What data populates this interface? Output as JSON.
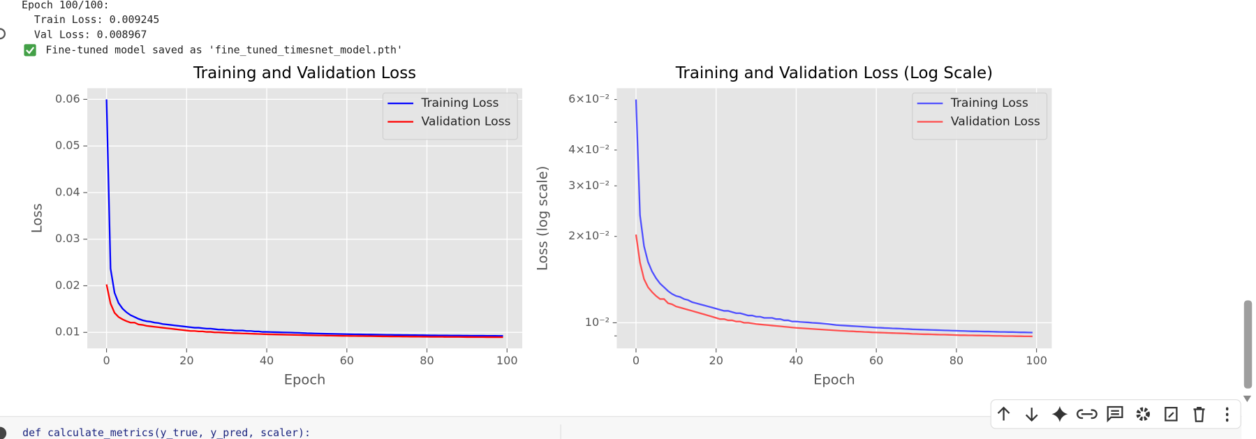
{
  "console": {
    "lines": [
      "Epoch 100/100:",
      "  Train Loss: 0.009245",
      "  Val Loss: 0.008967"
    ],
    "saved_message": "Fine-tuned model saved as 'fine_tuned_timesnet_model.pth'"
  },
  "code": {
    "line": "def calculate_metrics(y_true, y_pred, scaler):"
  },
  "chart_data": [
    {
      "type": "line",
      "title": "Training and Validation Loss",
      "x_label": "Epoch",
      "y_label": "Loss",
      "x": [
        0,
        1,
        2,
        3,
        4,
        5,
        6,
        7,
        8,
        9,
        10,
        11,
        12,
        13,
        14,
        15,
        16,
        17,
        18,
        19,
        20,
        21,
        22,
        23,
        24,
        25,
        26,
        27,
        28,
        29,
        30,
        31,
        32,
        33,
        34,
        35,
        36,
        37,
        38,
        39,
        40,
        41,
        42,
        43,
        44,
        45,
        46,
        47,
        48,
        49,
        50,
        51,
        52,
        53,
        54,
        55,
        56,
        57,
        58,
        59,
        60,
        61,
        62,
        63,
        64,
        65,
        66,
        67,
        68,
        69,
        70,
        71,
        72,
        73,
        74,
        75,
        76,
        77,
        78,
        79,
        80,
        81,
        82,
        83,
        84,
        85,
        86,
        87,
        88,
        89,
        90,
        91,
        92,
        93,
        94,
        95,
        96,
        97,
        98,
        99
      ],
      "series": [
        {
          "name": "Training Loss",
          "color": "#0000ff",
          "values": [
            0.06,
            0.0237,
            0.0185,
            0.0163,
            0.0151,
            0.0143,
            0.0137,
            0.0133,
            0.0129,
            0.0126,
            0.0124,
            0.0123,
            0.0121,
            0.012,
            0.0118,
            0.0117,
            0.0116,
            0.0115,
            0.0114,
            0.0113,
            0.0112,
            0.0111,
            0.011,
            0.011,
            0.0109,
            0.0108,
            0.0108,
            0.0107,
            0.0106,
            0.0106,
            0.0105,
            0.0105,
            0.0104,
            0.0104,
            0.0104,
            0.0103,
            0.0103,
            0.0102,
            0.0102,
            0.0101,
            0.0101,
            0.01007,
            0.01005,
            0.01003,
            0.01,
            0.00998,
            0.00996,
            0.00993,
            0.0099,
            0.00986,
            0.00982,
            0.0098,
            0.00978,
            0.00976,
            0.00974,
            0.00972,
            0.0097,
            0.00968,
            0.00966,
            0.00964,
            0.00962,
            0.00961,
            0.00959,
            0.00958,
            0.00956,
            0.00955,
            0.00954,
            0.00952,
            0.00951,
            0.00949,
            0.00948,
            0.00947,
            0.00946,
            0.00945,
            0.00944,
            0.00943,
            0.00942,
            0.00941,
            0.0094,
            0.00939,
            0.00938,
            0.00937,
            0.00936,
            0.00935,
            0.00934,
            0.00934,
            0.00933,
            0.00932,
            0.00932,
            0.00931,
            0.0093,
            0.00929,
            0.00929,
            0.00928,
            0.00928,
            0.00927,
            0.00926,
            0.00926,
            0.00925,
            0.009245
          ]
        },
        {
          "name": "Validation Loss",
          "color": "#ff0000",
          "values": [
            0.0203,
            0.0162,
            0.0142,
            0.0133,
            0.0128,
            0.0124,
            0.0121,
            0.0121,
            0.0117,
            0.0116,
            0.0114,
            0.0113,
            0.0112,
            0.0111,
            0.011,
            0.0109,
            0.0108,
            0.0107,
            0.0106,
            0.0105,
            0.0104,
            0.0103,
            0.0103,
            0.0102,
            0.0102,
            0.0101,
            0.0101,
            0.01,
            0.01,
            0.00995,
            0.0099,
            0.00987,
            0.00984,
            0.00981,
            0.00978,
            0.00975,
            0.00972,
            0.00969,
            0.00966,
            0.00963,
            0.0096,
            0.00958,
            0.00956,
            0.00954,
            0.00952,
            0.0095,
            0.00948,
            0.00946,
            0.00944,
            0.00942,
            0.0094,
            0.00938,
            0.00937,
            0.00935,
            0.00934,
            0.00932,
            0.00931,
            0.00929,
            0.00928,
            0.00926,
            0.00925,
            0.00924,
            0.00923,
            0.00922,
            0.00921,
            0.0092,
            0.00919,
            0.00918,
            0.00917,
            0.00915,
            0.00914,
            0.00913,
            0.00912,
            0.00912,
            0.00911,
            0.0091,
            0.00909,
            0.00909,
            0.00908,
            0.00907,
            0.00906,
            0.00905,
            0.00905,
            0.00904,
            0.00904,
            0.00903,
            0.00903,
            0.00902,
            0.00902,
            0.00901,
            0.009,
            0.009,
            0.00899,
            0.00899,
            0.00899,
            0.00898,
            0.00898,
            0.00897,
            0.00897,
            0.008967
          ]
        }
      ],
      "xlim": [
        -4.8,
        103.8
      ],
      "xticks": [
        0,
        20,
        40,
        60,
        80,
        100
      ],
      "ylim": [
        0.00656,
        0.0624
      ],
      "yticks": [
        0.01,
        0.02,
        0.03,
        0.04,
        0.05,
        0.06
      ],
      "grid": true,
      "legend": "upper right"
    },
    {
      "type": "line",
      "title": "Training and Validation Loss (Log Scale)",
      "x_label": "Epoch",
      "y_label": "Loss (log scale)",
      "x": [
        0,
        1,
        2,
        3,
        4,
        5,
        6,
        7,
        8,
        9,
        10,
        11,
        12,
        13,
        14,
        15,
        16,
        17,
        18,
        19,
        20,
        21,
        22,
        23,
        24,
        25,
        26,
        27,
        28,
        29,
        30,
        31,
        32,
        33,
        34,
        35,
        36,
        37,
        38,
        39,
        40,
        41,
        42,
        43,
        44,
        45,
        46,
        47,
        48,
        49,
        50,
        51,
        52,
        53,
        54,
        55,
        56,
        57,
        58,
        59,
        60,
        61,
        62,
        63,
        64,
        65,
        66,
        67,
        68,
        69,
        70,
        71,
        72,
        73,
        74,
        75,
        76,
        77,
        78,
        79,
        80,
        81,
        82,
        83,
        84,
        85,
        86,
        87,
        88,
        89,
        90,
        91,
        92,
        93,
        94,
        95,
        96,
        97,
        98,
        99
      ],
      "series": [
        {
          "name": "Training Loss",
          "color": "#4d4dff",
          "values": [
            0.06,
            0.0237,
            0.0185,
            0.0163,
            0.0151,
            0.0143,
            0.0137,
            0.0133,
            0.0129,
            0.0126,
            0.0124,
            0.0123,
            0.0121,
            0.012,
            0.0118,
            0.0117,
            0.0116,
            0.0115,
            0.0114,
            0.0113,
            0.0112,
            0.0111,
            0.011,
            0.011,
            0.0109,
            0.0108,
            0.0108,
            0.0107,
            0.0106,
            0.0106,
            0.0105,
            0.0105,
            0.0104,
            0.0104,
            0.0104,
            0.0103,
            0.0103,
            0.0102,
            0.0102,
            0.0101,
            0.0101,
            0.01007,
            0.01005,
            0.01003,
            0.01,
            0.00998,
            0.00996,
            0.00993,
            0.0099,
            0.00986,
            0.00982,
            0.0098,
            0.00978,
            0.00976,
            0.00974,
            0.00972,
            0.0097,
            0.00968,
            0.00966,
            0.00964,
            0.00962,
            0.00961,
            0.00959,
            0.00958,
            0.00956,
            0.00955,
            0.00954,
            0.00952,
            0.00951,
            0.00949,
            0.00948,
            0.00947,
            0.00946,
            0.00945,
            0.00944,
            0.00943,
            0.00942,
            0.00941,
            0.0094,
            0.00939,
            0.00938,
            0.00937,
            0.00936,
            0.00935,
            0.00934,
            0.00934,
            0.00933,
            0.00932,
            0.00932,
            0.00931,
            0.0093,
            0.00929,
            0.00929,
            0.00928,
            0.00928,
            0.00927,
            0.00926,
            0.00926,
            0.00925,
            0.009245
          ]
        },
        {
          "name": "Validation Loss",
          "color": "#ff4d4d",
          "values": [
            0.0203,
            0.0162,
            0.0142,
            0.0133,
            0.0128,
            0.0124,
            0.0121,
            0.0121,
            0.0117,
            0.0116,
            0.0114,
            0.0113,
            0.0112,
            0.0111,
            0.011,
            0.0109,
            0.0108,
            0.0107,
            0.0106,
            0.0105,
            0.0104,
            0.0103,
            0.0103,
            0.0102,
            0.0102,
            0.0101,
            0.0101,
            0.01,
            0.01,
            0.00995,
            0.0099,
            0.00987,
            0.00984,
            0.00981,
            0.00978,
            0.00975,
            0.00972,
            0.00969,
            0.00966,
            0.00963,
            0.0096,
            0.00958,
            0.00956,
            0.00954,
            0.00952,
            0.0095,
            0.00948,
            0.00946,
            0.00944,
            0.00942,
            0.0094,
            0.00938,
            0.00937,
            0.00935,
            0.00934,
            0.00932,
            0.00931,
            0.00929,
            0.00928,
            0.00926,
            0.00925,
            0.00924,
            0.00923,
            0.00922,
            0.00921,
            0.0092,
            0.00919,
            0.00918,
            0.00917,
            0.00915,
            0.00914,
            0.00913,
            0.00912,
            0.00912,
            0.00911,
            0.0091,
            0.00909,
            0.00909,
            0.00908,
            0.00907,
            0.00906,
            0.00905,
            0.00905,
            0.00904,
            0.00904,
            0.00903,
            0.00903,
            0.00902,
            0.00902,
            0.00901,
            0.009,
            0.009,
            0.00899,
            0.00899,
            0.00899,
            0.00898,
            0.00898,
            0.00897,
            0.00897,
            0.008967
          ]
        }
      ],
      "xlim": [
        -4.8,
        103.8
      ],
      "xticks": [
        0,
        20,
        40,
        60,
        80,
        100
      ],
      "ylim": [
        0.00814,
        0.0657
      ],
      "log_y": true,
      "yticks": [
        {
          "value": 0.01,
          "label": "10⁻²"
        },
        {
          "value": 0.02,
          "label": "2×10⁻²"
        },
        {
          "value": 0.03,
          "label": "3×10⁻²"
        },
        {
          "value": 0.04,
          "label": "4×10⁻²"
        },
        {
          "value": 0.06,
          "label": "6×10⁻²"
        }
      ],
      "y_minor_ticks": [
        0.009,
        0.05
      ],
      "grid": true,
      "legend": "upper right"
    }
  ]
}
